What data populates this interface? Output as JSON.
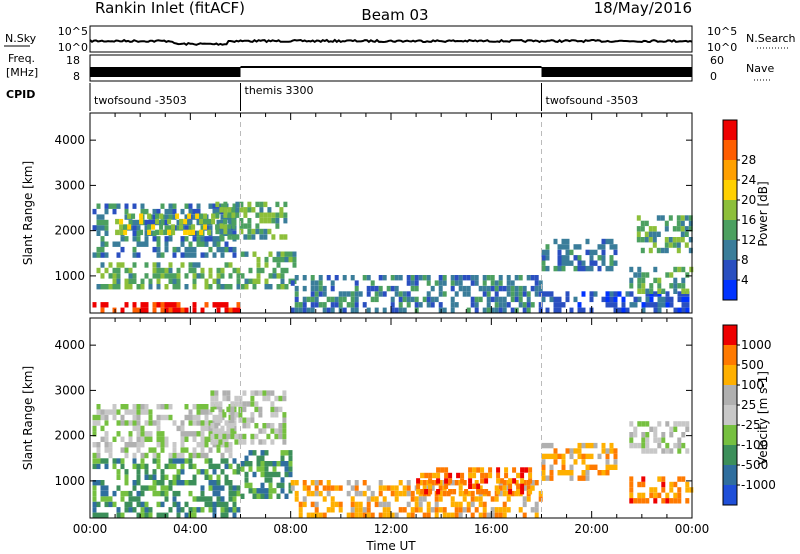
{
  "header": {
    "station": "Rankin Inlet (fitACF)",
    "beam": "Beam 03",
    "date": "18/May/2016"
  },
  "strips": {
    "nsky_label": "N.Sky",
    "nsky_ticks": [
      "10^5",
      "10^0"
    ],
    "nsearch_label": "N.Search",
    "nsearch_ticks": [
      "10^5",
      "10^0"
    ],
    "freq_label": "Freq.",
    "freq_unit": "[MHz]",
    "freq_ticks": [
      "18",
      "8"
    ],
    "nave_label": "Nave",
    "nave_ticks": [
      "60",
      "0"
    ],
    "cpid_label": "CPID"
  },
  "cpid": [
    {
      "name": "twofsound -3503",
      "start": 0,
      "end": 6
    },
    {
      "name": "themis 3300",
      "start": 6,
      "end": 18
    },
    {
      "name": "twofsound -3503",
      "start": 18,
      "end": 24
    }
  ],
  "chart_data": [
    {
      "type": "heatmap",
      "name": "Power",
      "xlabel": "",
      "ylabel": "Slant Range [km]",
      "x_range": [
        0,
        24
      ],
      "y_range": [
        180,
        4600
      ],
      "y_ticks": [
        "1000",
        "2000",
        "3000",
        "4000"
      ],
      "colorbar_label": "Power [dB]",
      "colorbar_ticks": [
        "4",
        "8",
        "12",
        "16",
        "20",
        "24",
        "28"
      ],
      "colorbar_colors": [
        "#0033ff",
        "#2a4fc0",
        "#3a7d9a",
        "#4ca060",
        "#8dbf3a",
        "#ffd000",
        "#ffa000",
        "#ff5e00",
        "#ee0000"
      ],
      "regions": [
        {
          "t0": 0.1,
          "t1": 5.9,
          "r0": 180,
          "r1": 420,
          "level": 8
        },
        {
          "t0": 0.1,
          "t1": 6.0,
          "r0": 700,
          "r1": 1300,
          "level": 3
        },
        {
          "t0": 0.1,
          "t1": 5.8,
          "r0": 1400,
          "r1": 2600,
          "level": 2
        },
        {
          "t0": 1.0,
          "t1": 5.6,
          "r0": 1900,
          "r1": 2300,
          "level": 4
        },
        {
          "t0": 6.0,
          "t1": 8.2,
          "r0": 700,
          "r1": 1500,
          "level": 3
        },
        {
          "t0": 5.0,
          "t1": 7.8,
          "r0": 1800,
          "r1": 2600,
          "level": 3
        },
        {
          "t0": 8.0,
          "t1": 17.9,
          "r0": 180,
          "r1": 1000,
          "level": 2
        },
        {
          "t0": 18.0,
          "t1": 23.9,
          "r0": 180,
          "r1": 600,
          "level": 1
        },
        {
          "t0": 18.0,
          "t1": 21.0,
          "r0": 1100,
          "r1": 1800,
          "level": 2
        },
        {
          "t0": 21.5,
          "t1": 23.9,
          "r0": 600,
          "r1": 1200,
          "level": 3
        },
        {
          "t0": 21.8,
          "t1": 23.9,
          "r0": 1500,
          "r1": 2300,
          "level": 3
        }
      ]
    },
    {
      "type": "heatmap",
      "name": "Velocity",
      "xlabel": "Time UT",
      "ylabel": "Slant Range [km]",
      "x_range": [
        0,
        24
      ],
      "x_ticks": [
        "00:00",
        "04:00",
        "08:00",
        "12:00",
        "16:00",
        "20:00",
        "00:00"
      ],
      "y_range": [
        180,
        4600
      ],
      "y_ticks": [
        "1000",
        "2000",
        "3000",
        "4000"
      ],
      "colorbar_label": "Velocity [m s-1]",
      "colorbar_ticks": [
        "1000",
        "500",
        "100",
        "25",
        "-25",
        "-100",
        "-500",
        "-1000"
      ],
      "colorbar_colors": [
        "#1f4fd8",
        "#2f6e9e",
        "#3c8f5a",
        "#76c040",
        "#c8c8c8",
        "#b0b0b0",
        "#ffb000",
        "#ff7a00",
        "#ee0000"
      ],
      "regions": [
        {
          "t0": 0.1,
          "t1": 6.0,
          "r0": 180,
          "r1": 1400,
          "level": 2
        },
        {
          "t0": 0.1,
          "t1": 5.8,
          "r0": 1500,
          "r1": 2600,
          "level": 4
        },
        {
          "t0": 4.8,
          "t1": 7.8,
          "r0": 1800,
          "r1": 2900,
          "level": 4
        },
        {
          "t0": 6.0,
          "t1": 8.0,
          "r0": 600,
          "r1": 1600,
          "level": 2
        },
        {
          "t0": 8.0,
          "t1": 17.9,
          "r0": 180,
          "r1": 1000,
          "level": 6
        },
        {
          "t0": 13.0,
          "t1": 17.5,
          "r0": 700,
          "r1": 1200,
          "level": 7
        },
        {
          "t0": 18.0,
          "t1": 21.0,
          "r0": 1000,
          "r1": 1800,
          "level": 6
        },
        {
          "t0": 21.5,
          "t1": 23.9,
          "r0": 500,
          "r1": 1100,
          "level": 7
        },
        {
          "t0": 21.5,
          "t1": 23.9,
          "r0": 1600,
          "r1": 2300,
          "level": 4
        }
      ]
    }
  ]
}
